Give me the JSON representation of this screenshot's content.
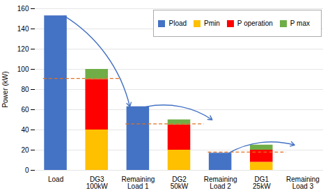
{
  "chart_data": {
    "type": "bar",
    "categories": [
      "Load",
      "DG3\n100kW",
      "Remaining\nLoad 1",
      "DG2\n50kW",
      "Remaining\nLoad 2",
      "DG1\n25kW",
      "Remaining\nLoad 3"
    ],
    "series": [
      {
        "name": "Pload",
        "color": "#4472C4",
        "values": [
          153,
          0,
          63,
          0,
          17,
          0,
          0
        ]
      },
      {
        "name": "Pmin",
        "color": "#FFC000",
        "values": [
          0,
          40,
          0,
          20,
          0,
          8,
          0
        ]
      },
      {
        "name": "P operation",
        "color": "#FF0000",
        "values": [
          0,
          50,
          0,
          25,
          0,
          12,
          0
        ]
      },
      {
        "name": "P max",
        "color": "#70AD47",
        "values": [
          0,
          10,
          0,
          5,
          0,
          5,
          0
        ]
      }
    ],
    "stacked": true,
    "dashed_lines": {
      "values": [
        91,
        46,
        18
      ],
      "color": "#E07020",
      "line_style": "dashed"
    },
    "arrows": {
      "start": [
        153,
        63,
        17
      ],
      "end": [
        63,
        50,
        25
      ],
      "color": "#4472C4"
    },
    "ylabel": "Power (kW)",
    "ylim": [
      0,
      160
    ],
    "yticks": [
      0,
      20,
      40,
      60,
      80,
      100,
      120,
      140,
      160
    ],
    "grid": true,
    "legend": "upper right"
  }
}
